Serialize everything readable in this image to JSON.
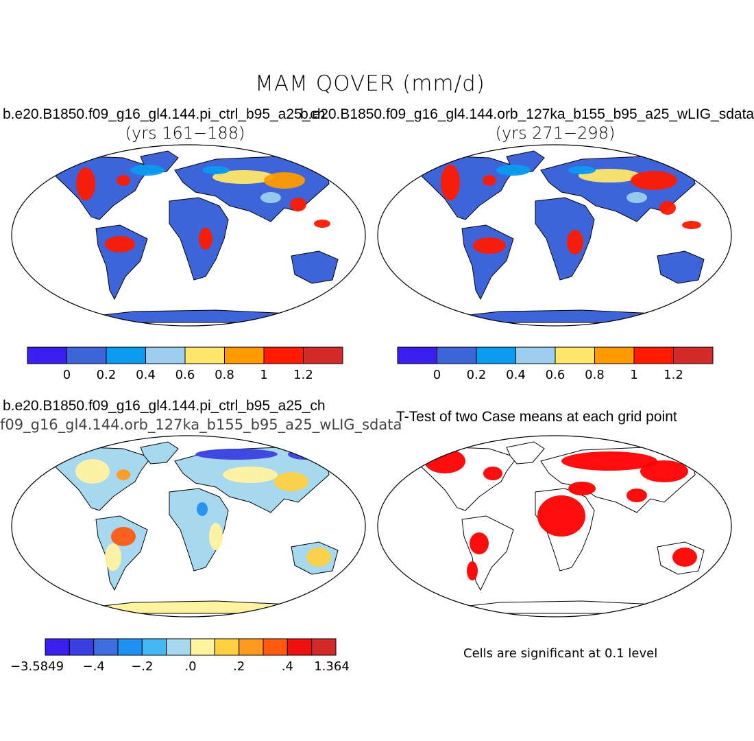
{
  "title": "MAM QOVER (mm/d)",
  "panels": {
    "ctrl": {
      "case": "b.e20.B1850.f09_g16_gl4.144.pi_ctrl_b95_a25_ch",
      "years": "(yrs 161−188)"
    },
    "orb": {
      "case": "b.e20.B1850.f09_g16_gl4.144.orb_127ka_b155_b95_a25_wLIG_sdata",
      "years": "(yrs 271−298)"
    },
    "diff": {
      "case_a": "b.e20.B1850.f09_g16_gl4.144.pi_ctrl_b95_a25_ch",
      "case_b": "f09_g16_gl4.144.orb_127ka_b155_b95_a25_wLIG_sdata"
    },
    "ttest": {
      "title": "T-Test of two Case means at each grid point",
      "note": "Cells are significant at 0.1 level"
    }
  },
  "colorbars": {
    "abs": {
      "colors": [
        "#3a1ff0",
        "#3d64d9",
        "#0a9bf0",
        "#9dcef0",
        "#ffe76a",
        "#ff9a00",
        "#ff1a00",
        "#d42a2a"
      ],
      "labels": [
        "0",
        "0.2",
        "0.4",
        "0.6",
        "0.8",
        "1",
        "1.2"
      ]
    },
    "diff": {
      "colors": [
        "#3a1ff0",
        "#3a40e0",
        "#3d6ee0",
        "#1f90f0",
        "#44b8f2",
        "#a6d8f0",
        "#fff3a0",
        "#ffd040",
        "#ff9a20",
        "#ff5a10",
        "#f01010",
        "#d42a2a"
      ],
      "labels": [
        "−3.5849",
        "−.4",
        "−.2",
        ".0",
        ".2",
        ".4",
        "1.364"
      ]
    },
    "sig_color": "#ff0000"
  },
  "map_colors": {
    "ocean": "#ffffff",
    "land_abs": "#3d64d9",
    "land_diff": "#a6d8f0",
    "antarctica_diff": "#fff3a0",
    "land_sig": "#ffffff"
  }
}
